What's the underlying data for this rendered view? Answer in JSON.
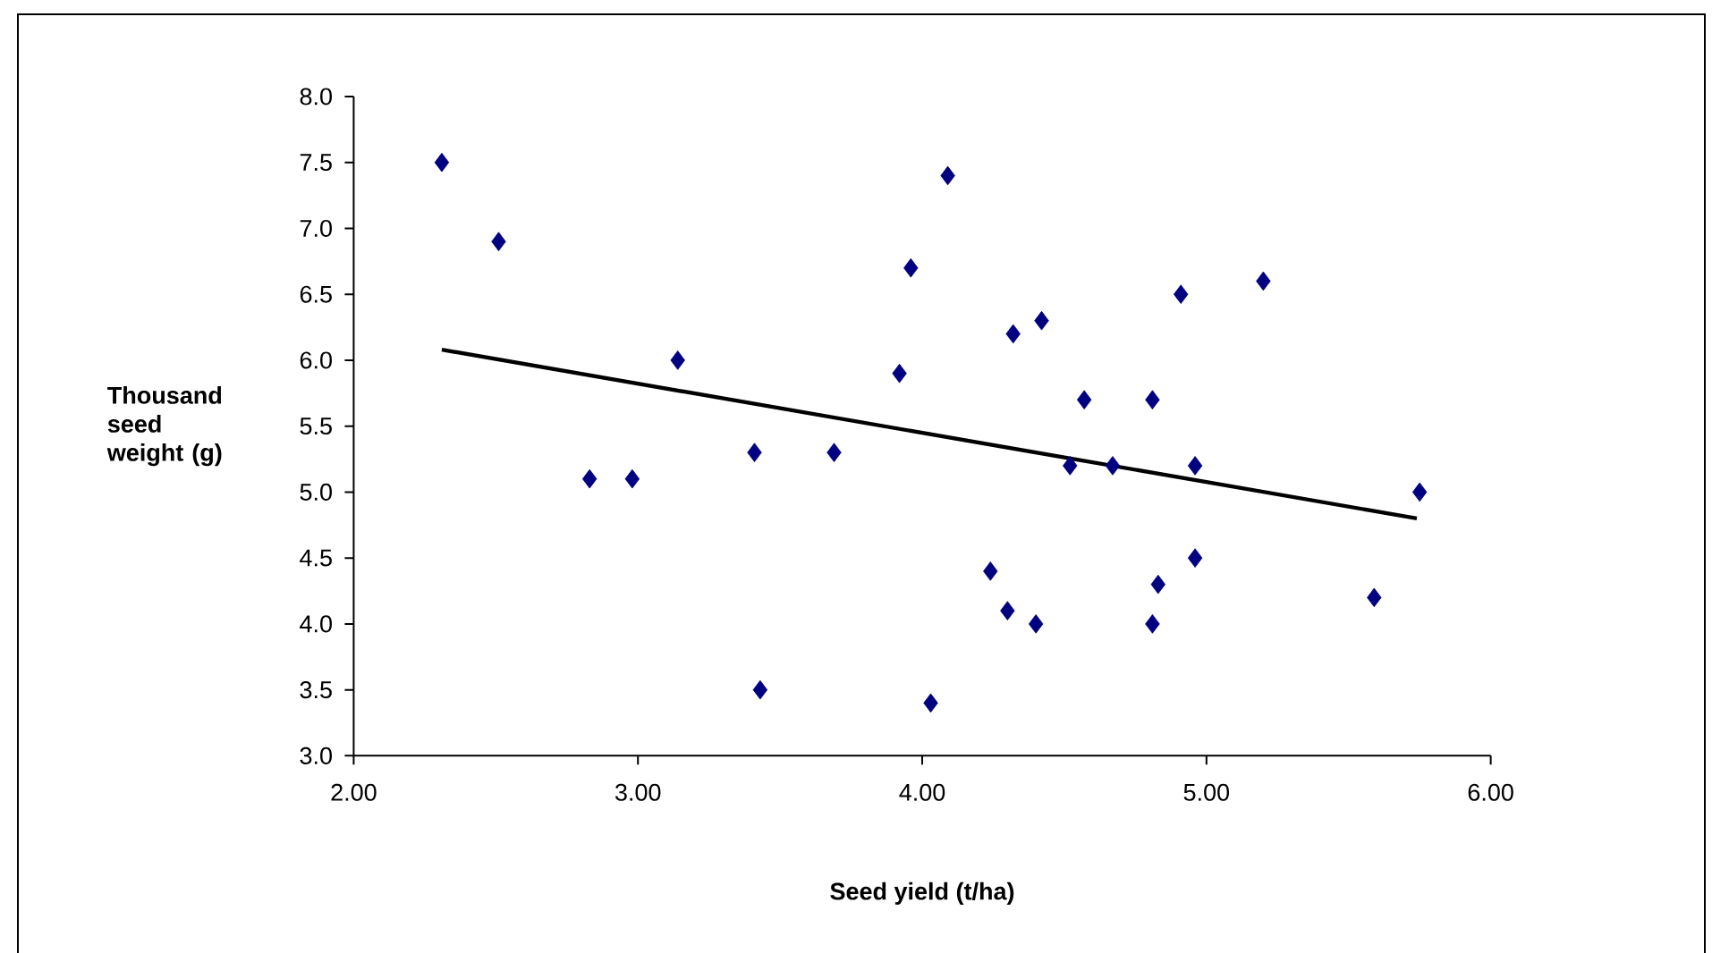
{
  "chart_data": {
    "type": "scatter",
    "xlabel": "Seed yield (t/ha)",
    "ylabel": "Thousand seed weight (g)",
    "xlim": [
      2,
      6
    ],
    "ylim": [
      3,
      8
    ],
    "xticks": [
      {
        "value": 2,
        "label": "2.00"
      },
      {
        "value": 3,
        "label": "3.00"
      },
      {
        "value": 4,
        "label": "4.00"
      },
      {
        "value": 5,
        "label": "5.00"
      },
      {
        "value": 6,
        "label": "6.00"
      }
    ],
    "yticks": [
      {
        "value": 3,
        "label": "3.0"
      },
      3.5,
      {
        "value": 4,
        "label": "4.0"
      },
      4.5,
      {
        "value": 5,
        "label": "5.0"
      },
      5.5,
      {
        "value": 6,
        "label": "6.0"
      },
      6.5,
      {
        "value": 7,
        "label": "7.0"
      },
      7.5,
      {
        "value": 8,
        "label": "8.0"
      }
    ],
    "grid": false,
    "series": [
      {
        "type": "scatter",
        "marker": "diamond",
        "color": "#000080",
        "x": [
          2.31,
          2.51,
          2.83,
          2.98,
          3.14,
          3.41,
          3.43,
          3.69,
          3.92,
          3.96,
          4.03,
          4.09,
          4.24,
          4.3,
          4.32,
          4.4,
          4.42,
          4.52,
          4.57,
          4.67,
          4.81,
          4.81,
          4.83,
          4.91,
          4.96,
          4.96,
          5.2,
          5.59,
          5.75
        ],
        "values": [
          7.5,
          6.9,
          5.1,
          5.1,
          6.0,
          5.3,
          3.5,
          5.3,
          5.9,
          6.7,
          3.4,
          7.4,
          4.4,
          4.1,
          6.2,
          4.0,
          6.3,
          5.2,
          5.7,
          5.2,
          5.7,
          4.0,
          4.3,
          6.5,
          5.2,
          4.5,
          6.6,
          4.2,
          5.0
        ]
      },
      {
        "type": "line",
        "marker": "none",
        "line_style": "solid",
        "color": "#000000",
        "x": [
          2.31,
          5.74
        ],
        "values": [
          6.08,
          4.8
        ]
      }
    ]
  }
}
